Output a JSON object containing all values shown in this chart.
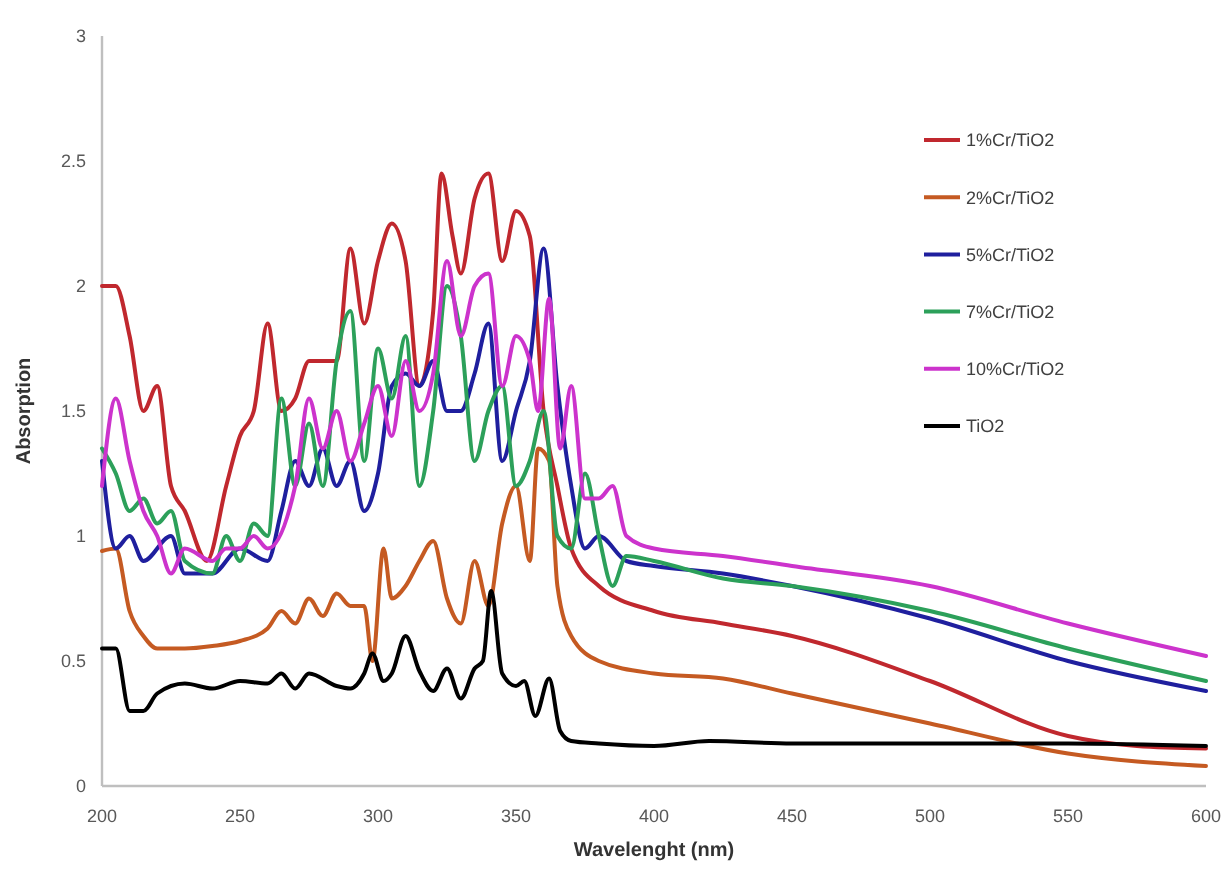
{
  "chart_data": {
    "type": "line",
    "xlabel": "Wavelenght (nm)",
    "ylabel": "Absorption",
    "xlim": [
      200,
      600
    ],
    "ylim": [
      0,
      3
    ],
    "xticks": [
      200,
      250,
      300,
      350,
      400,
      450,
      500,
      550,
      600
    ],
    "yticks": [
      0,
      0.5,
      1,
      1.5,
      2,
      2.5,
      3
    ],
    "grid": false,
    "legend": "top right",
    "marker": "none",
    "line_style": "solid",
    "series": [
      {
        "name": "1%Cr/TiO2",
        "color": "#c0282e",
        "x": [
          200,
          205,
          210,
          215,
          220,
          225,
          230,
          238,
          245,
          250,
          255,
          260,
          265,
          270,
          275,
          280,
          285,
          290,
          295,
          300,
          305,
          310,
          315,
          320,
          323,
          327,
          330,
          335,
          340,
          345,
          350,
          355,
          360,
          365,
          370,
          380,
          400,
          425,
          450,
          500,
          550,
          575,
          600
        ],
        "values": [
          2.0,
          2.0,
          1.8,
          1.5,
          1.6,
          1.2,
          1.1,
          0.9,
          1.2,
          1.4,
          1.5,
          1.85,
          1.5,
          1.55,
          1.7,
          1.7,
          1.7,
          2.15,
          1.85,
          2.1,
          2.25,
          2.1,
          1.6,
          1.9,
          2.45,
          2.2,
          2.05,
          2.35,
          2.45,
          2.1,
          2.3,
          2.2,
          1.5,
          1.2,
          0.95,
          0.8,
          0.7,
          0.65,
          0.6,
          0.42,
          0.2,
          0.16,
          0.15
        ]
      },
      {
        "name": "2%Cr/TiO2",
        "color": "#c55a22",
        "x": [
          200,
          205,
          210,
          215,
          220,
          230,
          240,
          250,
          260,
          265,
          270,
          275,
          280,
          285,
          290,
          295,
          298,
          302,
          305,
          310,
          315,
          320,
          325,
          330,
          335,
          340,
          345,
          350,
          355,
          358,
          362,
          365,
          370,
          380,
          400,
          425,
          450,
          500,
          550,
          600
        ],
        "values": [
          0.94,
          0.95,
          0.7,
          0.6,
          0.55,
          0.55,
          0.56,
          0.58,
          0.63,
          0.7,
          0.65,
          0.75,
          0.68,
          0.77,
          0.72,
          0.72,
          0.5,
          0.95,
          0.75,
          0.8,
          0.9,
          0.98,
          0.75,
          0.65,
          0.9,
          0.72,
          1.05,
          1.2,
          0.9,
          1.35,
          1.3,
          0.8,
          0.6,
          0.5,
          0.45,
          0.43,
          0.37,
          0.25,
          0.13,
          0.08
        ]
      },
      {
        "name": "5%Cr/TiO2",
        "color": "#1f1f9e",
        "x": [
          200,
          205,
          210,
          215,
          225,
          230,
          240,
          250,
          260,
          265,
          270,
          275,
          280,
          285,
          290,
          295,
          300,
          305,
          310,
          315,
          320,
          325,
          330,
          335,
          340,
          345,
          350,
          355,
          360,
          365,
          370,
          375,
          380,
          390,
          400,
          425,
          450,
          500,
          550,
          600
        ],
        "values": [
          1.3,
          0.95,
          1.0,
          0.9,
          1.0,
          0.85,
          0.85,
          0.95,
          0.9,
          1.1,
          1.3,
          1.2,
          1.35,
          1.2,
          1.3,
          1.1,
          1.25,
          1.6,
          1.65,
          1.6,
          1.7,
          1.5,
          1.5,
          1.65,
          1.85,
          1.3,
          1.5,
          1.7,
          2.15,
          1.6,
          1.2,
          0.95,
          1.0,
          0.9,
          0.88,
          0.85,
          0.8,
          0.67,
          0.5,
          0.38
        ]
      },
      {
        "name": "7%Cr/TiO2",
        "color": "#2ca05a",
        "x": [
          200,
          205,
          210,
          215,
          220,
          225,
          230,
          240,
          245,
          250,
          255,
          260,
          265,
          270,
          275,
          280,
          285,
          290,
          295,
          300,
          305,
          310,
          315,
          320,
          325,
          330,
          335,
          340,
          345,
          350,
          355,
          360,
          365,
          370,
          375,
          380,
          385,
          390,
          400,
          425,
          450,
          500,
          550,
          600
        ],
        "values": [
          1.35,
          1.25,
          1.1,
          1.15,
          1.05,
          1.1,
          0.9,
          0.85,
          1.0,
          0.9,
          1.05,
          1.0,
          1.55,
          1.2,
          1.45,
          1.2,
          1.7,
          1.9,
          1.3,
          1.75,
          1.55,
          1.8,
          1.2,
          1.5,
          2.0,
          1.8,
          1.3,
          1.5,
          1.6,
          1.2,
          1.3,
          1.5,
          1.0,
          0.95,
          1.25,
          1.0,
          0.8,
          0.92,
          0.9,
          0.83,
          0.8,
          0.7,
          0.55,
          0.42
        ]
      },
      {
        "name": "10%Cr/TiO2",
        "color": "#cc33cc",
        "x": [
          200,
          205,
          210,
          215,
          220,
          225,
          230,
          240,
          245,
          250,
          255,
          260,
          270,
          275,
          280,
          285,
          290,
          295,
          300,
          305,
          310,
          315,
          320,
          325,
          330,
          335,
          340,
          345,
          350,
          355,
          358,
          362,
          366,
          370,
          375,
          380,
          385,
          390,
          400,
          425,
          450,
          500,
          550,
          600
        ],
        "values": [
          1.2,
          1.55,
          1.3,
          1.1,
          1.0,
          0.85,
          0.95,
          0.9,
          0.95,
          0.95,
          1.0,
          0.95,
          1.2,
          1.55,
          1.35,
          1.5,
          1.3,
          1.45,
          1.6,
          1.4,
          1.7,
          1.5,
          1.65,
          2.1,
          1.8,
          2.0,
          2.05,
          1.6,
          1.8,
          1.7,
          1.5,
          1.95,
          1.35,
          1.6,
          1.15,
          1.15,
          1.2,
          1.0,
          0.95,
          0.92,
          0.88,
          0.8,
          0.65,
          0.52
        ]
      },
      {
        "name": "TiO2",
        "color": "#000000",
        "x": [
          200,
          205,
          210,
          215,
          220,
          230,
          240,
          250,
          260,
          265,
          270,
          275,
          285,
          290,
          295,
          298,
          302,
          305,
          310,
          315,
          320,
          325,
          330,
          335,
          338,
          341,
          345,
          350,
          353,
          357,
          362,
          366,
          370,
          380,
          400,
          420,
          450,
          500,
          550,
          600
        ],
        "values": [
          0.55,
          0.55,
          0.3,
          0.3,
          0.37,
          0.41,
          0.39,
          0.42,
          0.41,
          0.45,
          0.39,
          0.45,
          0.4,
          0.39,
          0.45,
          0.53,
          0.42,
          0.45,
          0.6,
          0.46,
          0.38,
          0.47,
          0.35,
          0.47,
          0.5,
          0.78,
          0.45,
          0.4,
          0.42,
          0.28,
          0.43,
          0.22,
          0.18,
          0.17,
          0.16,
          0.18,
          0.17,
          0.17,
          0.17,
          0.16
        ]
      }
    ]
  }
}
